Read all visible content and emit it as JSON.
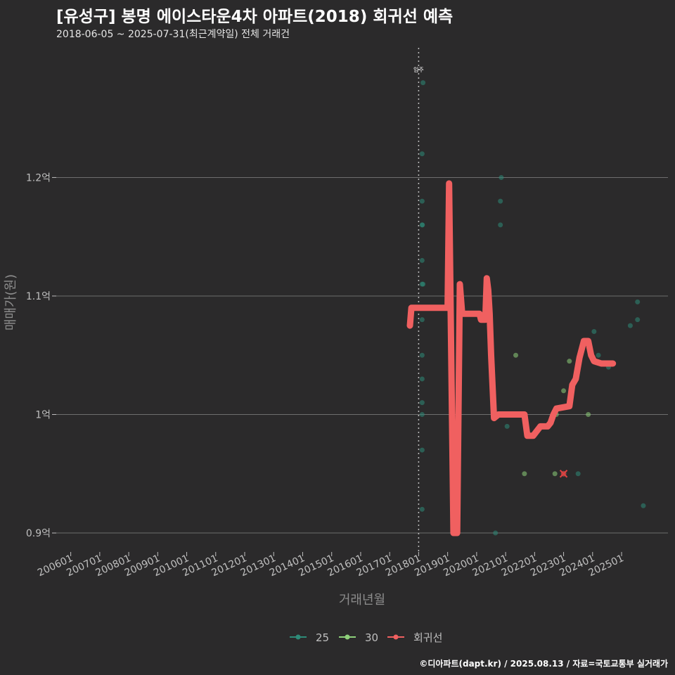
{
  "header": {
    "title": "[유성구] 봉명 에이스타운4차 아파트(2018) 회귀선 예측",
    "subtitle": "2018-06-05 ~ 2025-07-31(최근계약일) 전체 거래건"
  },
  "caption": "©디아파트(dapt.kr) / 2025.08.13 / 자료=국토교통부 실거래가",
  "chart_data": {
    "type": "scatter",
    "title": "[유성구] 봉명 에이스타운4차 아파트(2018) 회귀선 예측",
    "subtitle": "2018-06-05 ~ 2025-07-31(최근계약일) 전체 거래건",
    "xlabel": "거래년월",
    "ylabel": "매매가(원)",
    "xlim": [
      2005.5,
      2026.6
    ],
    "ylim": [
      0.884,
      1.313
    ],
    "y_unit": "억",
    "grid": true,
    "x_ticks": [
      {
        "value": 2006.0,
        "label": "200601"
      },
      {
        "value": 2007.0,
        "label": "200701"
      },
      {
        "value": 2008.0,
        "label": "200801"
      },
      {
        "value": 2009.0,
        "label": "200901"
      },
      {
        "value": 2010.0,
        "label": "201001"
      },
      {
        "value": 2011.0,
        "label": "201101"
      },
      {
        "value": 2012.0,
        "label": "201201"
      },
      {
        "value": 2013.0,
        "label": "201301"
      },
      {
        "value": 2014.0,
        "label": "201401"
      },
      {
        "value": 2015.0,
        "label": "201501"
      },
      {
        "value": 2016.0,
        "label": "201601"
      },
      {
        "value": 2017.0,
        "label": "201701"
      },
      {
        "value": 2018.0,
        "label": "201801"
      },
      {
        "value": 2019.0,
        "label": "201901"
      },
      {
        "value": 2020.0,
        "label": "202001"
      },
      {
        "value": 2021.0,
        "label": "202101"
      },
      {
        "value": 2022.0,
        "label": "202201"
      },
      {
        "value": 2023.0,
        "label": "202301"
      },
      {
        "value": 2024.0,
        "label": "202401"
      },
      {
        "value": 2025.0,
        "label": "202501"
      }
    ],
    "y_ticks": [
      {
        "value": 0.9,
        "label": "0.9억"
      },
      {
        "value": 1.0,
        "label": "1억"
      },
      {
        "value": 1.1,
        "label": "1.1억"
      },
      {
        "value": 1.2,
        "label": "1.2억"
      }
    ],
    "annotation": {
      "label": "입주",
      "x": 2018.0
    },
    "legend": {
      "position": "bottom",
      "items": [
        {
          "name": "25",
          "color": "#2e8b78"
        },
        {
          "name": "30",
          "color": "#8ed07a"
        },
        {
          "name": "회귀선",
          "color": "#f06060"
        }
      ]
    },
    "series": [
      {
        "name": "25",
        "color": "#2e8b78",
        "points": [
          [
            2018.15,
            1.28
          ],
          [
            2018.12,
            1.22
          ],
          [
            2018.12,
            1.18
          ],
          [
            2018.12,
            1.16
          ],
          [
            2018.13,
            1.16
          ],
          [
            2018.12,
            1.13
          ],
          [
            2018.12,
            1.11
          ],
          [
            2018.15,
            1.11
          ],
          [
            2018.12,
            1.08
          ],
          [
            2018.12,
            1.05
          ],
          [
            2018.12,
            1.03
          ],
          [
            2018.12,
            1.01
          ],
          [
            2018.12,
            1.0
          ],
          [
            2018.12,
            0.97
          ],
          [
            2018.12,
            0.92
          ],
          [
            2020.65,
            0.9
          ],
          [
            2020.85,
            1.2
          ],
          [
            2020.82,
            1.18
          ],
          [
            2020.82,
            1.16
          ],
          [
            2021.05,
            0.99
          ],
          [
            2023.0,
            0.95
          ],
          [
            2023.5,
            0.95
          ],
          [
            2024.05,
            1.07
          ],
          [
            2024.2,
            1.05
          ],
          [
            2024.55,
            1.04
          ],
          [
            2025.3,
            1.075
          ],
          [
            2025.55,
            1.095
          ],
          [
            2025.55,
            1.08
          ],
          [
            2025.75,
            0.923
          ]
        ]
      },
      {
        "name": "30",
        "color": "#8ed07a",
        "points": [
          [
            2021.35,
            1.05
          ],
          [
            2021.65,
            0.95
          ],
          [
            2022.7,
            0.95
          ],
          [
            2022.75,
            1.0
          ],
          [
            2023.0,
            1.02
          ],
          [
            2023.2,
            1.045
          ],
          [
            2023.85,
            1.0
          ]
        ]
      },
      {
        "name": "회귀선",
        "color": "#f06060",
        "points": [
          [
            2017.7,
            1.075
          ],
          [
            2017.75,
            1.09
          ],
          [
            2019.0,
            1.09
          ],
          [
            2019.05,
            1.195
          ],
          [
            2019.2,
            0.9
          ],
          [
            2019.33,
            0.9
          ],
          [
            2019.42,
            1.11
          ],
          [
            2019.5,
            1.085
          ],
          [
            2019.75,
            1.085
          ],
          [
            2020.0,
            1.085
          ],
          [
            2020.1,
            1.085
          ],
          [
            2020.15,
            1.08
          ],
          [
            2020.3,
            1.08
          ],
          [
            2020.35,
            1.115
          ],
          [
            2020.4,
            1.105
          ],
          [
            2020.45,
            1.085
          ],
          [
            2020.5,
            1.05
          ],
          [
            2020.6,
            0.997
          ],
          [
            2020.75,
            1.0
          ],
          [
            2021.65,
            1.0
          ],
          [
            2021.75,
            0.982
          ],
          [
            2021.95,
            0.982
          ],
          [
            2022.2,
            0.99
          ],
          [
            2022.45,
            0.99
          ],
          [
            2022.55,
            0.993
          ],
          [
            2022.65,
            1.0
          ],
          [
            2022.75,
            1.005
          ],
          [
            2023.2,
            1.007
          ],
          [
            2023.3,
            1.025
          ],
          [
            2023.42,
            1.03
          ],
          [
            2023.55,
            1.048
          ],
          [
            2023.7,
            1.062
          ],
          [
            2023.85,
            1.062
          ],
          [
            2023.95,
            1.05
          ],
          [
            2024.05,
            1.045
          ],
          [
            2024.3,
            1.043
          ],
          [
            2024.7,
            1.043
          ]
        ]
      },
      {
        "name": "예측",
        "color": "#e04040",
        "points": [
          [
            2023.0,
            0.95
          ]
        ]
      }
    ]
  }
}
